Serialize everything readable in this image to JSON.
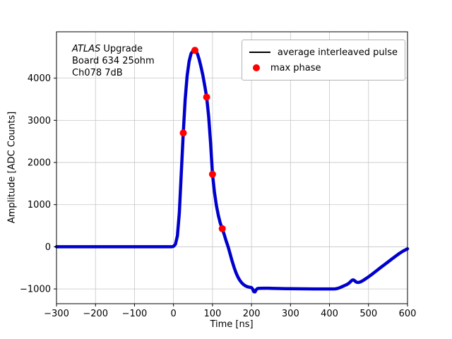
{
  "figure": {
    "background": "#ffffff",
    "annotation": {
      "experiment": "ATLAS",
      "line1_suffix": " Upgrade",
      "line2": "Board 634 25ohm",
      "line3": "Ch078 7dB"
    },
    "legend": {
      "position": "upper right",
      "items": [
        {
          "label": "average interleaved pulse",
          "marker": "line",
          "color": "#000000"
        },
        {
          "label": "max phase",
          "marker": "dot",
          "color": "#ff0000"
        }
      ]
    }
  },
  "chart_data": {
    "type": "line",
    "title": "",
    "xlabel": "Time [ns]",
    "ylabel": "Amplitude [ADC Counts]",
    "xlim": [
      -300,
      600
    ],
    "ylim": [
      -1350,
      5100
    ],
    "xticks": [
      -300,
      -200,
      -100,
      0,
      100,
      200,
      300,
      400,
      500,
      600
    ],
    "yticks": [
      -1000,
      0,
      1000,
      2000,
      3000,
      4000
    ],
    "grid": true,
    "grid_color": "#c6c6c6",
    "legend_position": "upper right",
    "series": [
      {
        "name": "average interleaved pulse",
        "type": "line",
        "color": "#0000cd",
        "points": [
          [
            -300,
            0
          ],
          [
            -280,
            0
          ],
          [
            -260,
            0
          ],
          [
            -240,
            0
          ],
          [
            -220,
            0
          ],
          [
            -200,
            0
          ],
          [
            -180,
            0
          ],
          [
            -160,
            0
          ],
          [
            -140,
            0
          ],
          [
            -120,
            0
          ],
          [
            -100,
            0
          ],
          [
            -80,
            0
          ],
          [
            -60,
            0
          ],
          [
            -40,
            0
          ],
          [
            -20,
            0
          ],
          [
            -10,
            0
          ],
          [
            -5,
            0
          ],
          [
            0,
            10
          ],
          [
            5,
            60
          ],
          [
            10,
            260
          ],
          [
            15,
            800
          ],
          [
            20,
            1750
          ],
          [
            25,
            2700
          ],
          [
            30,
            3500
          ],
          [
            35,
            4060
          ],
          [
            40,
            4400
          ],
          [
            45,
            4580
          ],
          [
            50,
            4650
          ],
          [
            55,
            4660
          ],
          [
            58,
            4640
          ],
          [
            62,
            4560
          ],
          [
            66,
            4440
          ],
          [
            70,
            4290
          ],
          [
            75,
            4080
          ],
          [
            80,
            3830
          ],
          [
            85,
            3550
          ],
          [
            90,
            3100
          ],
          [
            95,
            2480
          ],
          [
            100,
            1720
          ],
          [
            105,
            1300
          ],
          [
            110,
            980
          ],
          [
            115,
            740
          ],
          [
            120,
            560
          ],
          [
            125,
            430
          ],
          [
            130,
            290
          ],
          [
            135,
            140
          ],
          [
            140,
            0
          ],
          [
            145,
            -160
          ],
          [
            150,
            -330
          ],
          [
            155,
            -480
          ],
          [
            160,
            -610
          ],
          [
            165,
            -715
          ],
          [
            170,
            -795
          ],
          [
            175,
            -855
          ],
          [
            180,
            -900
          ],
          [
            185,
            -930
          ],
          [
            190,
            -950
          ],
          [
            195,
            -960
          ],
          [
            200,
            -968
          ],
          [
            203,
            -1005
          ],
          [
            206,
            -1065
          ],
          [
            209,
            -1070
          ],
          [
            212,
            -1020
          ],
          [
            215,
            -992
          ],
          [
            220,
            -985
          ],
          [
            230,
            -983
          ],
          [
            240,
            -983
          ],
          [
            250,
            -985
          ],
          [
            260,
            -988
          ],
          [
            270,
            -990
          ],
          [
            280,
            -992
          ],
          [
            290,
            -994
          ],
          [
            300,
            -995
          ],
          [
            320,
            -997
          ],
          [
            340,
            -999
          ],
          [
            360,
            -1000
          ],
          [
            380,
            -1000
          ],
          [
            400,
            -1000
          ],
          [
            410,
            -1000
          ],
          [
            415,
            -998
          ],
          [
            420,
            -990
          ],
          [
            425,
            -975
          ],
          [
            430,
            -955
          ],
          [
            435,
            -935
          ],
          [
            440,
            -915
          ],
          [
            445,
            -893
          ],
          [
            450,
            -862
          ],
          [
            455,
            -818
          ],
          [
            458,
            -792
          ],
          [
            461,
            -786
          ],
          [
            464,
            -800
          ],
          [
            467,
            -828
          ],
          [
            470,
            -843
          ],
          [
            475,
            -845
          ],
          [
            480,
            -830
          ],
          [
            485,
            -806
          ],
          [
            490,
            -776
          ],
          [
            495,
            -746
          ],
          [
            500,
            -712
          ],
          [
            510,
            -644
          ],
          [
            520,
            -572
          ],
          [
            530,
            -500
          ],
          [
            540,
            -430
          ],
          [
            550,
            -360
          ],
          [
            560,
            -290
          ],
          [
            570,
            -220
          ],
          [
            580,
            -152
          ],
          [
            590,
            -95
          ],
          [
            600,
            -48
          ]
        ]
      },
      {
        "name": "max phase",
        "type": "scatter",
        "color": "#ff0000",
        "points": [
          [
            25,
            2700
          ],
          [
            55,
            4660
          ],
          [
            85,
            3550
          ],
          [
            100,
            1720
          ],
          [
            125,
            430
          ]
        ]
      }
    ]
  }
}
